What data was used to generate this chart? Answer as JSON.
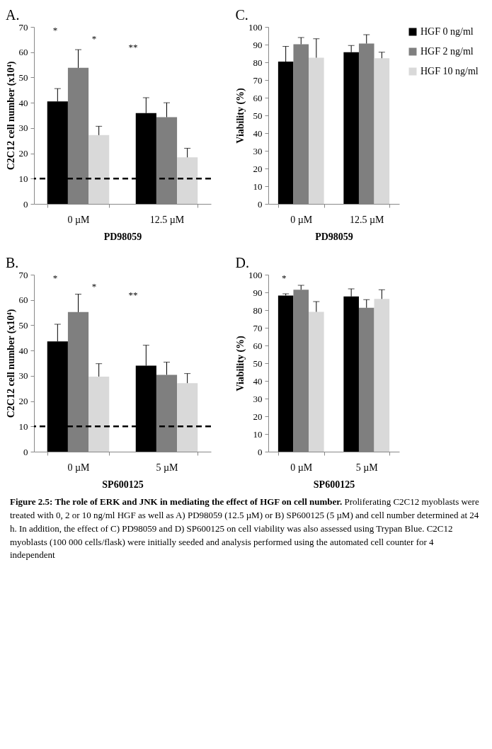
{
  "chart_data": [
    {
      "type": "bar",
      "title": "A.",
      "xlabel": "PD98059",
      "ylabel": "C2C12 cell number (x10⁴)",
      "categories": [
        "0 µM",
        "12.5 µM"
      ],
      "ylim": [
        0,
        70
      ],
      "yticks": [
        0,
        10,
        20,
        30,
        40,
        50,
        60,
        70
      ],
      "series": [
        {
          "color": "#000000",
          "values": [
            40.5,
            35.9
          ],
          "errors": [
            [
              40.5,
              45.6
            ],
            [
              35.9,
              42
            ]
          ]
        },
        {
          "color": "#7f7f7f",
          "values": [
            53.8,
            34.3
          ],
          "errors": [
            [
              53.8,
              61
            ],
            [
              34.3,
              40
            ]
          ]
        },
        {
          "color": "#d9d9d9",
          "values": [
            27.2,
            18.4
          ],
          "errors": [
            [
              27.2,
              30.7
            ],
            [
              18.4,
              22
            ]
          ]
        }
      ],
      "ref_lines": [
        {
          "axis": "y",
          "value": 10,
          "color": "#000000",
          "line_style": "dashed"
        }
      ],
      "annotations": [
        "*",
        "*",
        "**"
      ]
    },
    {
      "type": "bar",
      "title": "C.",
      "ylabel": "Viability (%)",
      "xlabel": "PD98059",
      "categories": [
        "0 µM",
        "12.5 µM"
      ],
      "ylim": [
        0,
        100
      ],
      "yticks": [
        0,
        10,
        20,
        30,
        40,
        50,
        60,
        70,
        80,
        90,
        100
      ],
      "legend": "right",
      "series": [
        {
          "name": "HGF 0 ng/ml",
          "color": "#000000",
          "values": [
            80.4,
            85.7
          ],
          "errors": [
            [
              80.4,
              89
            ],
            [
              85.7,
              89.5
            ]
          ]
        },
        {
          "name": "HGF 2 ng/ml",
          "color": "#7f7f7f",
          "values": [
            90.2,
            90.6
          ],
          "errors": [
            [
              90.2,
              94
            ],
            [
              90.6,
              95.6
            ]
          ]
        },
        {
          "name": "HGF 10 ng/ml",
          "color": "#d9d9d9",
          "values": [
            82.6,
            82.3
          ],
          "errors": [
            [
              82.6,
              93.3
            ],
            [
              82.3,
              85.7
            ]
          ]
        }
      ]
    },
    {
      "type": "bar",
      "title": "B.",
      "xlabel": "SP600125",
      "ylabel": "C2C12 cell number (x10⁴)",
      "categories": [
        "0 µM",
        "5 µM"
      ],
      "ylim": [
        0,
        70
      ],
      "yticks": [
        0,
        10,
        20,
        30,
        40,
        50,
        60,
        70
      ],
      "series": [
        {
          "color": "#000000",
          "values": [
            43.6,
            34
          ],
          "errors": [
            [
              43.6,
              50.4
            ],
            [
              34,
              42.1
            ]
          ]
        },
        {
          "color": "#7f7f7f",
          "values": [
            55.2,
            30.4
          ],
          "errors": [
            [
              55.2,
              62.3
            ],
            [
              30.4,
              35.4
            ]
          ]
        },
        {
          "color": "#d9d9d9",
          "values": [
            29.7,
            27.1
          ],
          "errors": [
            [
              29.7,
              34.8
            ],
            [
              27.1,
              30.9
            ]
          ]
        }
      ],
      "ref_lines": [
        {
          "axis": "y",
          "value": 10,
          "color": "#000000",
          "line_style": "dashed"
        }
      ],
      "annotations": [
        "*",
        "*",
        "**"
      ]
    },
    {
      "type": "bar",
      "title": "D.",
      "xlabel": "SP600125",
      "ylabel": "Viability (%)",
      "categories": [
        "0 µM",
        "5 µM"
      ],
      "ylim": [
        0,
        100
      ],
      "yticks": [
        0,
        10,
        20,
        30,
        40,
        50,
        60,
        70,
        80,
        90,
        100
      ],
      "series": [
        {
          "color": "#000000",
          "values": [
            88.2,
            87.7
          ],
          "errors": [
            [
              88.2,
              89.2
            ],
            [
              87.7,
              92
            ]
          ]
        },
        {
          "color": "#7f7f7f",
          "values": [
            91.5,
            81.3
          ],
          "errors": [
            [
              91.5,
              94
            ],
            [
              81.3,
              85.9
            ]
          ]
        },
        {
          "color": "#d9d9d9",
          "values": [
            79,
            86.3
          ],
          "errors": [
            [
              79,
              84.8
            ],
            [
              86.3,
              91.5
            ]
          ]
        }
      ],
      "annotations": [
        "*"
      ]
    },
    {
      "type": "other",
      "annotations": [
        "Figure 2.5: The role of ERK and JNK in mediating the effect of HGF on cell number. Proliferating C2C12 myoblasts were treated with 0, 2 or 10 ng/ml HGF as well as A) PD98059 (12.5 µM) or B) SP600125 (5 µM) and cell number determined at 24 h. In addition, the effect of C) PD98059 and D) SP600125 on cell viability was also assessed using Trypan Blue. C2C12 myoblasts (100 000 cells/flask) were initially seeded and analysis performed using the automated cell counter for 4 independent"
      ]
    }
  ]
}
